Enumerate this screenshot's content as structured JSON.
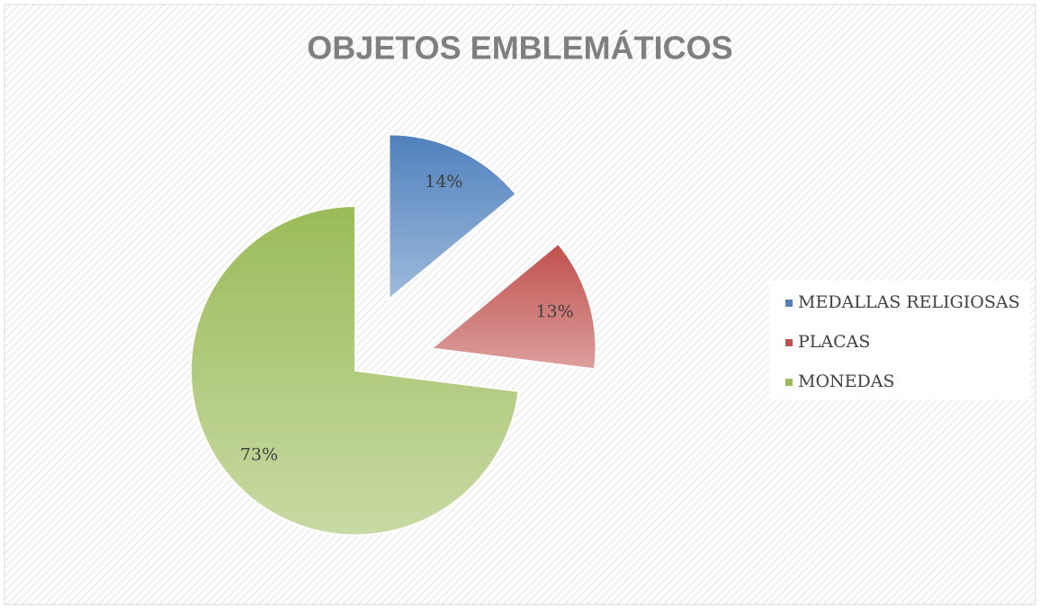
{
  "chart_data": {
    "type": "pie",
    "title": "OBJETOS EMBLEMÁTICOS",
    "categories": [
      "MEDALLAS RELIGIOSAS",
      "PLACAS",
      "MONEDAS"
    ],
    "values": [
      14,
      13,
      73
    ],
    "value_labels": [
      "14%",
      "13%",
      "73%"
    ],
    "colors": [
      "#4f81bd",
      "#c0504d",
      "#9bbb59"
    ],
    "legend": "right"
  }
}
